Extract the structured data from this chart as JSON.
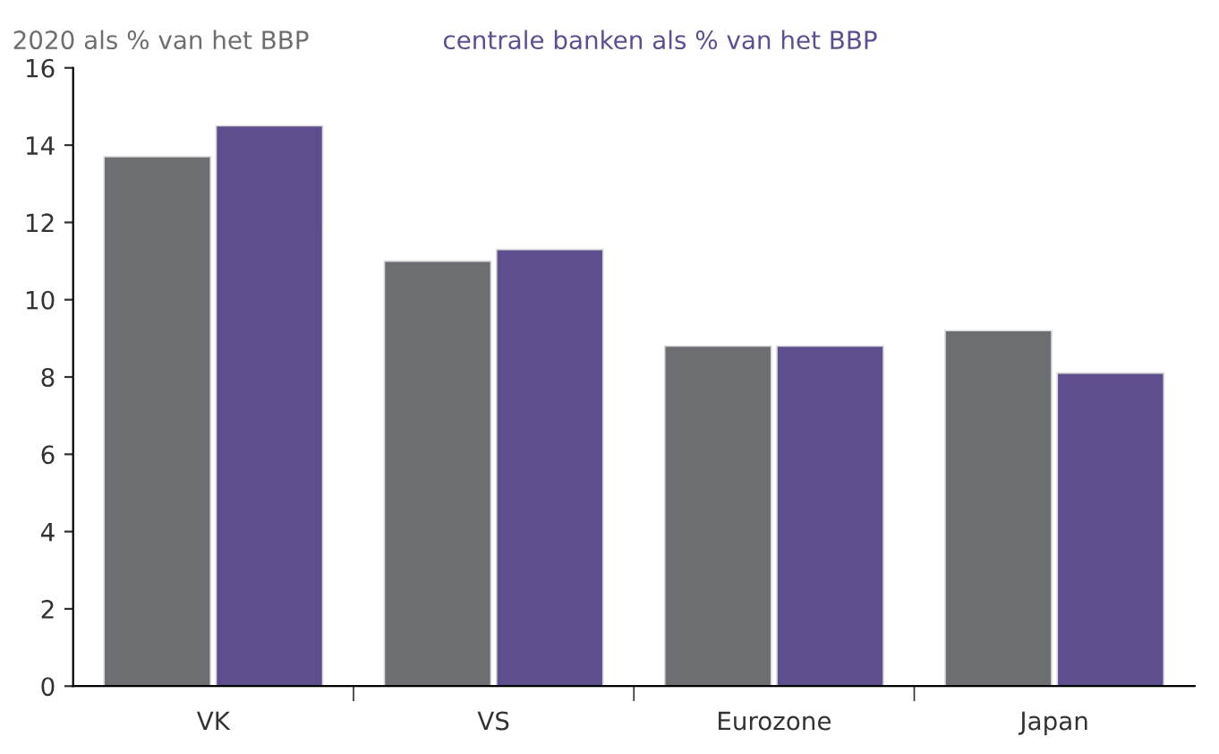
{
  "chart_data": {
    "type": "bar",
    "categories": [
      "VK",
      "VS",
      "Eurozone",
      "Japan"
    ],
    "series": [
      {
        "name": "2020 als % van het BBP",
        "color": "#6d6e71",
        "values": [
          13.7,
          11.0,
          8.8,
          9.2
        ]
      },
      {
        "name": "centrale banken als % van het BBP",
        "color": "#5e4e8e",
        "values": [
          14.5,
          11.3,
          8.8,
          8.1
        ]
      }
    ],
    "ylim": [
      0,
      16
    ],
    "yticks": [
      0,
      2,
      4,
      6,
      8,
      10,
      12,
      14,
      16
    ],
    "grid": false
  }
}
